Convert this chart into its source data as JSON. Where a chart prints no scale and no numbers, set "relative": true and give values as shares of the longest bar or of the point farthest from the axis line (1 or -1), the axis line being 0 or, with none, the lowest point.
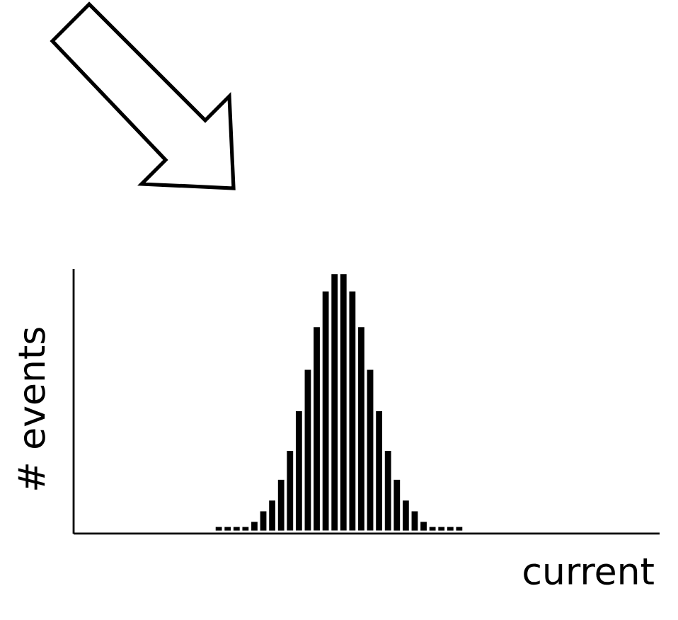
{
  "chart_data": {
    "type": "bar",
    "relative": true,
    "xlabel": "current",
    "ylabel": "# events",
    "color": "#000000",
    "categories": [
      null,
      null,
      null,
      null,
      null,
      null,
      null,
      null,
      null,
      null,
      null,
      null,
      null,
      null,
      null,
      null,
      null,
      null,
      null,
      null,
      null,
      null,
      null,
      null,
      null,
      null,
      null,
      null
    ],
    "values": [
      0.014,
      0.014,
      0.014,
      0.014,
      0.034,
      0.075,
      0.117,
      0.198,
      0.311,
      0.465,
      0.627,
      0.793,
      0.932,
      1,
      1,
      0.932,
      0.793,
      0.627,
      0.465,
      0.311,
      0.198,
      0.117,
      0.075,
      0.034,
      0.014,
      0.014,
      0.014,
      0.014
    ]
  }
}
